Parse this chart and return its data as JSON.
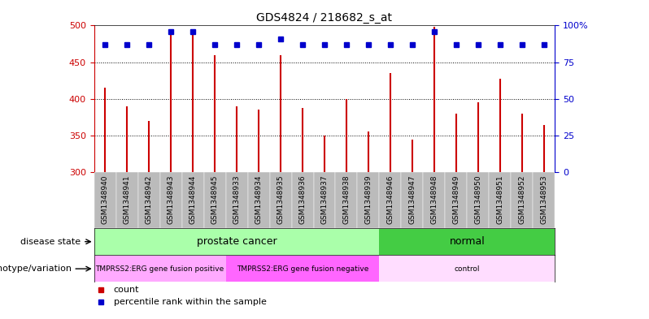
{
  "title": "GDS4824 / 218682_s_at",
  "categories": [
    "GSM1348940",
    "GSM1348941",
    "GSM1348942",
    "GSM1348943",
    "GSM1348944",
    "GSM1348945",
    "GSM1348933",
    "GSM1348934",
    "GSM1348935",
    "GSM1348936",
    "GSM1348937",
    "GSM1348938",
    "GSM1348939",
    "GSM1348946",
    "GSM1348947",
    "GSM1348948",
    "GSM1348949",
    "GSM1348950",
    "GSM1348951",
    "GSM1348952",
    "GSM1348953"
  ],
  "bar_values": [
    415,
    390,
    370,
    492,
    488,
    460,
    390,
    385,
    460,
    388,
    350,
    400,
    356,
    435,
    344,
    498,
    380,
    395,
    428,
    380,
    364
  ],
  "percentile_values": [
    87,
    87,
    87,
    96,
    96,
    87,
    87,
    87,
    91,
    87,
    87,
    87,
    87,
    87,
    87,
    96,
    87,
    87,
    87,
    87,
    87
  ],
  "ylim_left": [
    300,
    500
  ],
  "ylim_right": [
    0,
    100
  ],
  "yticks_left": [
    300,
    350,
    400,
    450,
    500
  ],
  "yticks_right": [
    0,
    25,
    50,
    75,
    100
  ],
  "bar_color": "#cc0000",
  "percentile_color": "#0000cc",
  "gridline_y": [
    350,
    400,
    450
  ],
  "disease_state_groups": [
    {
      "label": "prostate cancer",
      "start": 0,
      "end": 12,
      "color": "#aaffaa"
    },
    {
      "label": "normal",
      "start": 13,
      "end": 20,
      "color": "#44cc44"
    }
  ],
  "genotype_groups": [
    {
      "label": "TMPRSS2:ERG gene fusion positive",
      "start": 0,
      "end": 5,
      "color": "#ffaaff"
    },
    {
      "label": "TMPRSS2:ERG gene fusion negative",
      "start": 6,
      "end": 12,
      "color": "#ff66ff"
    },
    {
      "label": "control",
      "start": 13,
      "end": 20,
      "color": "#ffddff"
    }
  ],
  "legend_items": [
    {
      "label": "count",
      "color": "#cc0000"
    },
    {
      "label": "percentile rank within the sample",
      "color": "#0000cc"
    }
  ],
  "xlabel_disease": "disease state",
  "xlabel_genotype": "genotype/variation",
  "background_color": "#ffffff",
  "tick_bg_color": "#bbbbbb"
}
